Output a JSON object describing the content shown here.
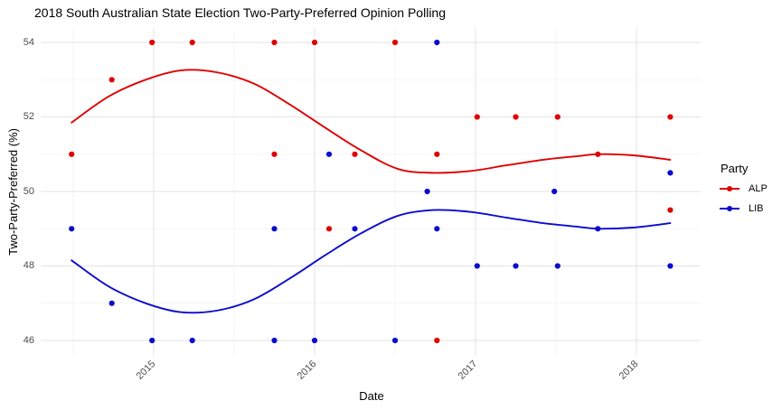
{
  "chart_data": {
    "type": "scatter",
    "title": "2018 South Australian State Election Two-Party-Preferred Opinion Polling",
    "xlabel": "Date",
    "ylabel": "Two-Party-Preferred (%)",
    "grid": "on",
    "background": "#ffffff",
    "grid_major_color": "#e3e3e3",
    "grid_minor_color": "#f2f2f2",
    "tick_label_color": "#4d4d4d",
    "x_axis": {
      "major_ticks": [
        {
          "label": "2015",
          "year": 2015
        },
        {
          "label": "2016",
          "year": 2016
        },
        {
          "label": "2017",
          "year": 2017
        },
        {
          "label": "2018",
          "year": 2018
        }
      ],
      "minor_ticks": [
        2014.5,
        2015.5,
        2016.5,
        2017.5
      ],
      "range": [
        2014.3,
        2018.4
      ]
    },
    "y_axis": {
      "major_ticks": [
        {
          "label": "46",
          "value": 46
        },
        {
          "label": "48",
          "value": 48
        },
        {
          "label": "50",
          "value": 50
        },
        {
          "label": "52",
          "value": 52
        },
        {
          "label": "54",
          "value": 54
        }
      ],
      "minor_ticks": [
        47,
        49,
        51,
        53
      ],
      "range": [
        45.6,
        54.4
      ]
    },
    "legend": {
      "title": "Party",
      "position": "right",
      "entries": [
        {
          "label": "ALP",
          "color": "#e00000"
        },
        {
          "label": "LIB",
          "color": "#0b0bd0"
        }
      ]
    },
    "series": [
      {
        "name": "ALP",
        "color": "#e00000",
        "points": [
          [
            2014.49,
            51
          ],
          [
            2014.74,
            53
          ],
          [
            2014.99,
            54
          ],
          [
            2015.24,
            54
          ],
          [
            2015.75,
            51
          ],
          [
            2015.75,
            54
          ],
          [
            2016.0,
            54
          ],
          [
            2016.09,
            49
          ],
          [
            2016.25,
            51
          ],
          [
            2016.5,
            54
          ],
          [
            2016.76,
            46
          ],
          [
            2016.76,
            51
          ],
          [
            2017.01,
            52
          ],
          [
            2017.25,
            52
          ],
          [
            2017.51,
            52
          ],
          [
            2017.76,
            51
          ],
          [
            2018.21,
            49.5
          ],
          [
            2018.21,
            52
          ]
        ],
        "smooth": [
          [
            2014.49,
            51.85
          ],
          [
            2014.72,
            52.55
          ],
          [
            2014.95,
            53.0
          ],
          [
            2015.17,
            53.25
          ],
          [
            2015.39,
            53.2
          ],
          [
            2015.62,
            52.9
          ],
          [
            2015.84,
            52.35
          ],
          [
            2016.07,
            51.7
          ],
          [
            2016.29,
            51.1
          ],
          [
            2016.52,
            50.6
          ],
          [
            2016.74,
            50.5
          ],
          [
            2016.97,
            50.55
          ],
          [
            2017.19,
            50.7
          ],
          [
            2017.42,
            50.85
          ],
          [
            2017.64,
            50.95
          ],
          [
            2017.76,
            51.0
          ],
          [
            2017.98,
            50.97
          ],
          [
            2018.21,
            50.85
          ]
        ]
      },
      {
        "name": "LIB",
        "color": "#0b0bd0",
        "points": [
          [
            2014.49,
            49
          ],
          [
            2014.74,
            47
          ],
          [
            2014.99,
            46
          ],
          [
            2015.24,
            46
          ],
          [
            2015.75,
            46
          ],
          [
            2015.75,
            49
          ],
          [
            2016.0,
            46
          ],
          [
            2016.09,
            51
          ],
          [
            2016.25,
            49
          ],
          [
            2016.5,
            46
          ],
          [
            2016.7,
            50
          ],
          [
            2016.76,
            49
          ],
          [
            2016.76,
            54
          ],
          [
            2017.01,
            48
          ],
          [
            2017.25,
            48
          ],
          [
            2017.49,
            50
          ],
          [
            2017.51,
            48
          ],
          [
            2017.76,
            49
          ],
          [
            2018.21,
            48
          ],
          [
            2018.21,
            50.5
          ]
        ],
        "smooth": [
          [
            2014.49,
            48.15
          ],
          [
            2014.72,
            47.45
          ],
          [
            2014.95,
            47.0
          ],
          [
            2015.17,
            46.76
          ],
          [
            2015.39,
            46.8
          ],
          [
            2015.62,
            47.1
          ],
          [
            2015.84,
            47.65
          ],
          [
            2016.07,
            48.3
          ],
          [
            2016.29,
            48.88
          ],
          [
            2016.52,
            49.35
          ],
          [
            2016.74,
            49.5
          ],
          [
            2016.97,
            49.45
          ],
          [
            2017.19,
            49.3
          ],
          [
            2017.42,
            49.15
          ],
          [
            2017.64,
            49.05
          ],
          [
            2017.76,
            49.0
          ],
          [
            2017.98,
            49.03
          ],
          [
            2018.21,
            49.15
          ]
        ]
      }
    ]
  }
}
